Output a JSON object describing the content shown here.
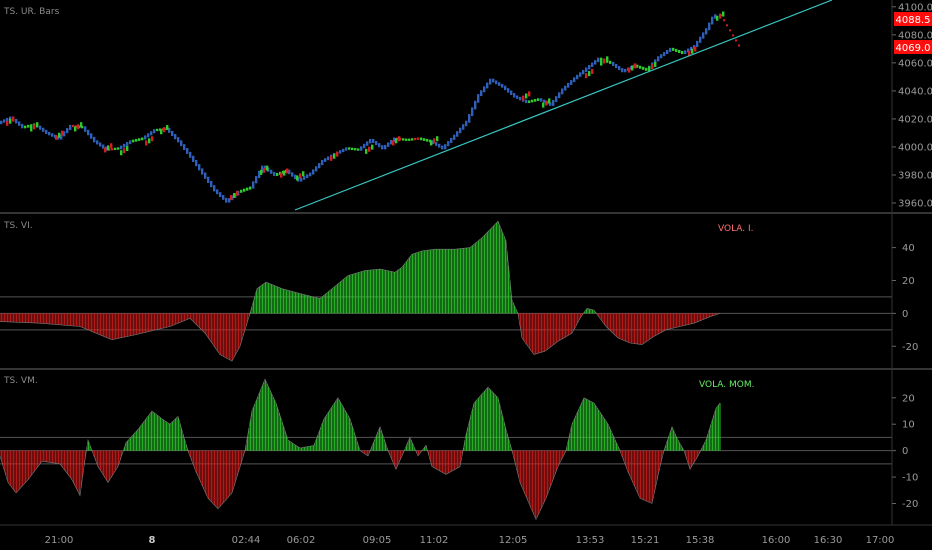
{
  "colors": {
    "background": "#000000",
    "up": "#2ecc2e",
    "down": "#d11f1f",
    "blue": "#2f5fb8",
    "trendline": "#39c6c0",
    "grid": "#5a5a5a",
    "axis_text": "#9a9a9a",
    "price_tag": "#ff0d0d"
  },
  "chart_data": [
    {
      "type": "candlestick",
      "title": "TS. UR. Bars",
      "ylim": [
        3955,
        4102
      ],
      "yticks": [
        "3960.0",
        "3980.0",
        "4000.0",
        "4020.0",
        "4040.0",
        "4060.0",
        "4080.0",
        "4100.0"
      ],
      "price_tags": [
        "4088.5",
        "4069.0"
      ],
      "x_ticks": [
        "21:00",
        "8",
        "02:44",
        "06:02",
        "09:05",
        "11:02",
        "12:05",
        "13:53",
        "15:21",
        "15:38",
        "16:00",
        "16:30",
        "17:00"
      ],
      "path": [
        [
          0,
          4017
        ],
        [
          12,
          4021
        ],
        [
          24,
          4014
        ],
        [
          36,
          4016
        ],
        [
          48,
          4010
        ],
        [
          60,
          4006
        ],
        [
          72,
          4015
        ],
        [
          84,
          4014
        ],
        [
          96,
          4004
        ],
        [
          108,
          3998
        ],
        [
          120,
          3999
        ],
        [
          132,
          4004
        ],
        [
          144,
          4006
        ],
        [
          156,
          4012
        ],
        [
          168,
          4013
        ],
        [
          180,
          4004
        ],
        [
          192,
          3993
        ],
        [
          204,
          3981
        ],
        [
          216,
          3969
        ],
        [
          228,
          3961
        ],
        [
          240,
          3968
        ],
        [
          252,
          3971
        ],
        [
          264,
          3986
        ],
        [
          276,
          3980
        ],
        [
          288,
          3983
        ],
        [
          300,
          3976
        ],
        [
          312,
          3981
        ],
        [
          324,
          3990
        ],
        [
          336,
          3995
        ],
        [
          348,
          3999
        ],
        [
          360,
          3998
        ],
        [
          372,
          4005
        ],
        [
          384,
          3999
        ],
        [
          396,
          4006
        ],
        [
          408,
          4005
        ],
        [
          420,
          4006
        ],
        [
          432,
          4004
        ],
        [
          444,
          3999
        ],
        [
          456,
          4008
        ],
        [
          468,
          4018
        ],
        [
          480,
          4037
        ],
        [
          492,
          4048
        ],
        [
          504,
          4043
        ],
        [
          516,
          4036
        ],
        [
          528,
          4032
        ],
        [
          540,
          4034
        ],
        [
          552,
          4030
        ],
        [
          564,
          4041
        ],
        [
          576,
          4049
        ],
        [
          588,
          4056
        ],
        [
          600,
          4063
        ],
        [
          612,
          4060
        ],
        [
          624,
          4054
        ],
        [
          636,
          4058
        ],
        [
          648,
          4055
        ],
        [
          660,
          4064
        ],
        [
          672,
          4070
        ],
        [
          684,
          4067
        ],
        [
          696,
          4072
        ],
        [
          708,
          4084
        ],
        [
          716,
          4095
        ],
        [
          728,
          4082
        ],
        [
          740,
          4068
        ]
      ],
      "trendline": [
        [
          3980,
          3955
        ],
        [
          4102,
          4102
        ]
      ]
    },
    {
      "type": "area",
      "title": "TS. VI.",
      "legend": "VOLA. I.",
      "ylim": [
        -32,
        58
      ],
      "yticks": [
        "40",
        "20",
        "0",
        "-20"
      ],
      "hlines": [
        10,
        0,
        -10
      ],
      "points": [
        [
          0,
          -5
        ],
        [
          40,
          -6
        ],
        [
          80,
          -8
        ],
        [
          100,
          -13
        ],
        [
          112,
          -16
        ],
        [
          135,
          -13
        ],
        [
          170,
          -8
        ],
        [
          190,
          -3
        ],
        [
          205,
          -12
        ],
        [
          220,
          -25
        ],
        [
          232,
          -29
        ],
        [
          240,
          -20
        ],
        [
          250,
          0
        ],
        [
          257,
          15
        ],
        [
          266,
          19
        ],
        [
          282,
          15
        ],
        [
          300,
          12
        ],
        [
          320,
          9
        ],
        [
          332,
          15
        ],
        [
          348,
          23
        ],
        [
          365,
          26
        ],
        [
          380,
          27
        ],
        [
          395,
          25
        ],
        [
          402,
          28
        ],
        [
          412,
          36
        ],
        [
          422,
          38
        ],
        [
          435,
          39
        ],
        [
          455,
          39
        ],
        [
          470,
          40
        ],
        [
          482,
          46
        ],
        [
          498,
          56
        ],
        [
          506,
          44
        ],
        [
          512,
          8
        ],
        [
          518,
          0
        ],
        [
          522,
          -15
        ],
        [
          534,
          -25
        ],
        [
          545,
          -23
        ],
        [
          558,
          -17
        ],
        [
          572,
          -12
        ],
        [
          580,
          -3
        ],
        [
          587,
          3
        ],
        [
          594,
          2
        ],
        [
          606,
          -8
        ],
        [
          618,
          -15
        ],
        [
          630,
          -18
        ],
        [
          642,
          -19
        ],
        [
          654,
          -14
        ],
        [
          666,
          -10
        ],
        [
          680,
          -8
        ],
        [
          694,
          -6
        ],
        [
          710,
          -2
        ],
        [
          720,
          0
        ]
      ]
    },
    {
      "type": "area",
      "title": "TS. VM.",
      "legend": "VOLA. MOM.",
      "ylim": [
        -27,
        29
      ],
      "yticks": [
        "20",
        "10",
        "0",
        "-10",
        "-20"
      ],
      "hlines": [
        5,
        0,
        -5
      ],
      "points": [
        [
          0,
          -2
        ],
        [
          8,
          -12
        ],
        [
          16,
          -16
        ],
        [
          28,
          -11
        ],
        [
          42,
          -4
        ],
        [
          60,
          -5
        ],
        [
          72,
          -11
        ],
        [
          80,
          -17
        ],
        [
          84,
          -6
        ],
        [
          88,
          4
        ],
        [
          92,
          0
        ],
        [
          98,
          -6
        ],
        [
          108,
          -12
        ],
        [
          118,
          -6
        ],
        [
          126,
          3
        ],
        [
          138,
          8
        ],
        [
          152,
          15
        ],
        [
          162,
          12
        ],
        [
          170,
          10
        ],
        [
          178,
          13
        ],
        [
          184,
          5
        ],
        [
          188,
          0
        ],
        [
          196,
          -8
        ],
        [
          208,
          -18
        ],
        [
          218,
          -22
        ],
        [
          232,
          -16
        ],
        [
          245,
          0
        ],
        [
          252,
          15
        ],
        [
          265,
          27
        ],
        [
          276,
          18
        ],
        [
          288,
          4
        ],
        [
          300,
          1
        ],
        [
          314,
          2
        ],
        [
          324,
          12
        ],
        [
          338,
          20
        ],
        [
          350,
          12
        ],
        [
          360,
          0
        ],
        [
          368,
          -2
        ],
        [
          380,
          9
        ],
        [
          388,
          0
        ],
        [
          396,
          -7
        ],
        [
          402,
          -2
        ],
        [
          410,
          5
        ],
        [
          418,
          -2
        ],
        [
          426,
          2
        ],
        [
          432,
          -6
        ],
        [
          446,
          -9
        ],
        [
          460,
          -6
        ],
        [
          466,
          6
        ],
        [
          474,
          18
        ],
        [
          488,
          24
        ],
        [
          498,
          20
        ],
        [
          506,
          8
        ],
        [
          512,
          0
        ],
        [
          520,
          -12
        ],
        [
          536,
          -26
        ],
        [
          546,
          -18
        ],
        [
          558,
          -6
        ],
        [
          566,
          0
        ],
        [
          572,
          10
        ],
        [
          584,
          20
        ],
        [
          594,
          18
        ],
        [
          608,
          10
        ],
        [
          620,
          0
        ],
        [
          628,
          -8
        ],
        [
          640,
          -18
        ],
        [
          652,
          -20
        ],
        [
          660,
          -6
        ],
        [
          664,
          0
        ],
        [
          672,
          9
        ],
        [
          678,
          4
        ],
        [
          684,
          0
        ],
        [
          690,
          -7
        ],
        [
          698,
          -2
        ],
        [
          706,
          4
        ],
        [
          716,
          16
        ],
        [
          720,
          18
        ]
      ]
    }
  ]
}
